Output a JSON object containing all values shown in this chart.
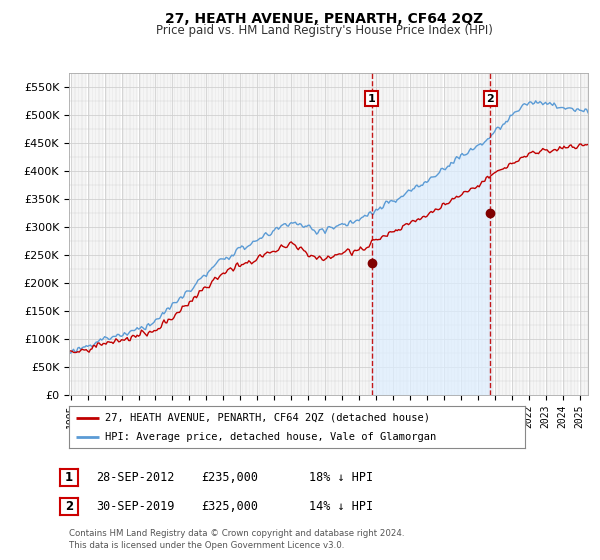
{
  "title": "27, HEATH AVENUE, PENARTH, CF64 2QZ",
  "subtitle": "Price paid vs. HM Land Registry's House Price Index (HPI)",
  "hpi_label": "HPI: Average price, detached house, Vale of Glamorgan",
  "property_label": "27, HEATH AVENUE, PENARTH, CF64 2QZ (detached house)",
  "footer_line1": "Contains HM Land Registry data © Crown copyright and database right 2024.",
  "footer_line2": "This data is licensed under the Open Government Licence v3.0.",
  "marker1_date": "28-SEP-2012",
  "marker1_price": "£235,000",
  "marker1_pct": "18% ↓ HPI",
  "marker1_year": 2012.75,
  "marker1_y": 235000,
  "marker2_date": "30-SEP-2019",
  "marker2_price": "£325,000",
  "marker2_pct": "14% ↓ HPI",
  "marker2_year": 2019.75,
  "marker2_y": 325000,
  "ylim": [
    0,
    575000
  ],
  "xlim_start": 1994.9,
  "xlim_end": 2025.5,
  "hpi_color": "#5b9bd5",
  "hpi_fill_color": "#ddeeff",
  "property_color": "#c00000",
  "grid_color": "#d0d0d0",
  "background_color": "#ffffff",
  "marker_dot_color": "#800000"
}
